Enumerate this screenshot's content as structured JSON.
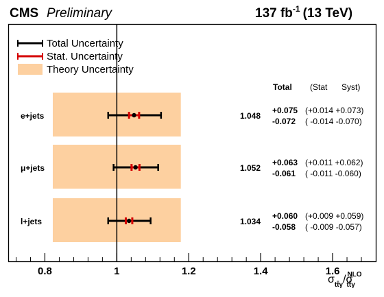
{
  "header": {
    "experiment": "CMS",
    "status": "Preliminary",
    "lumi_value": "137 fb",
    "lumi_exp": "-1",
    "energy": "(13 TeV)"
  },
  "legend": {
    "total": "Total Uncertainty",
    "stat": "Stat. Uncertainty",
    "theory": "Theory Uncertainty"
  },
  "table_header": {
    "total": "Total",
    "stat": "(Stat",
    "syst": "Syst)"
  },
  "xaxis": {
    "label_main": "σ",
    "label_sub": "tt̄γ",
    "label_slash": "/σ",
    "label_sup": "NLO",
    "ticks": [
      "0.8",
      "1",
      "1.2",
      "1.4",
      "1.6"
    ]
  },
  "colors": {
    "theory_band": "#fdd0a0",
    "total_bar": "#000000",
    "stat_bar": "#d40000",
    "point": "#000000"
  },
  "chart_data": {
    "type": "scatter",
    "xlim": [
      0.7,
      1.72
    ],
    "xticks": [
      0.8,
      1.0,
      1.2,
      1.4,
      1.6
    ],
    "theory_band": [
      0.822,
      1.178
    ],
    "reference_line": 1.0,
    "legend_placement": "top-left",
    "grid": false,
    "channels": [
      {
        "name": "e+jets",
        "value": 1.048,
        "value_text": "1.048",
        "total_up": 0.075,
        "total_down": 0.072,
        "stat_up": 0.014,
        "stat_down": 0.014,
        "syst_up": 0.073,
        "syst_down": 0.07,
        "total_up_text": "+0.075",
        "total_down_text": "-0.072",
        "breakdown_up_text": "(+0.014  +0.073)",
        "breakdown_down_text": "( -0.014  -0.070)"
      },
      {
        "name": "μ+jets",
        "value": 1.052,
        "value_text": "1.052",
        "total_up": 0.063,
        "total_down": 0.061,
        "stat_up": 0.011,
        "stat_down": 0.011,
        "syst_up": 0.062,
        "syst_down": 0.06,
        "total_up_text": "+0.063",
        "total_down_text": "-0.061",
        "breakdown_up_text": "(+0.011  +0.062)",
        "breakdown_down_text": "( -0.011  -0.060)"
      },
      {
        "name": "l+jets",
        "value": 1.034,
        "value_text": "1.034",
        "total_up": 0.06,
        "total_down": 0.058,
        "stat_up": 0.009,
        "stat_down": 0.009,
        "syst_up": 0.059,
        "syst_down": 0.057,
        "total_up_text": "+0.060",
        "total_down_text": "-0.058",
        "breakdown_up_text": "(+0.009  +0.059)",
        "breakdown_down_text": "( -0.009  -0.057)"
      }
    ]
  }
}
